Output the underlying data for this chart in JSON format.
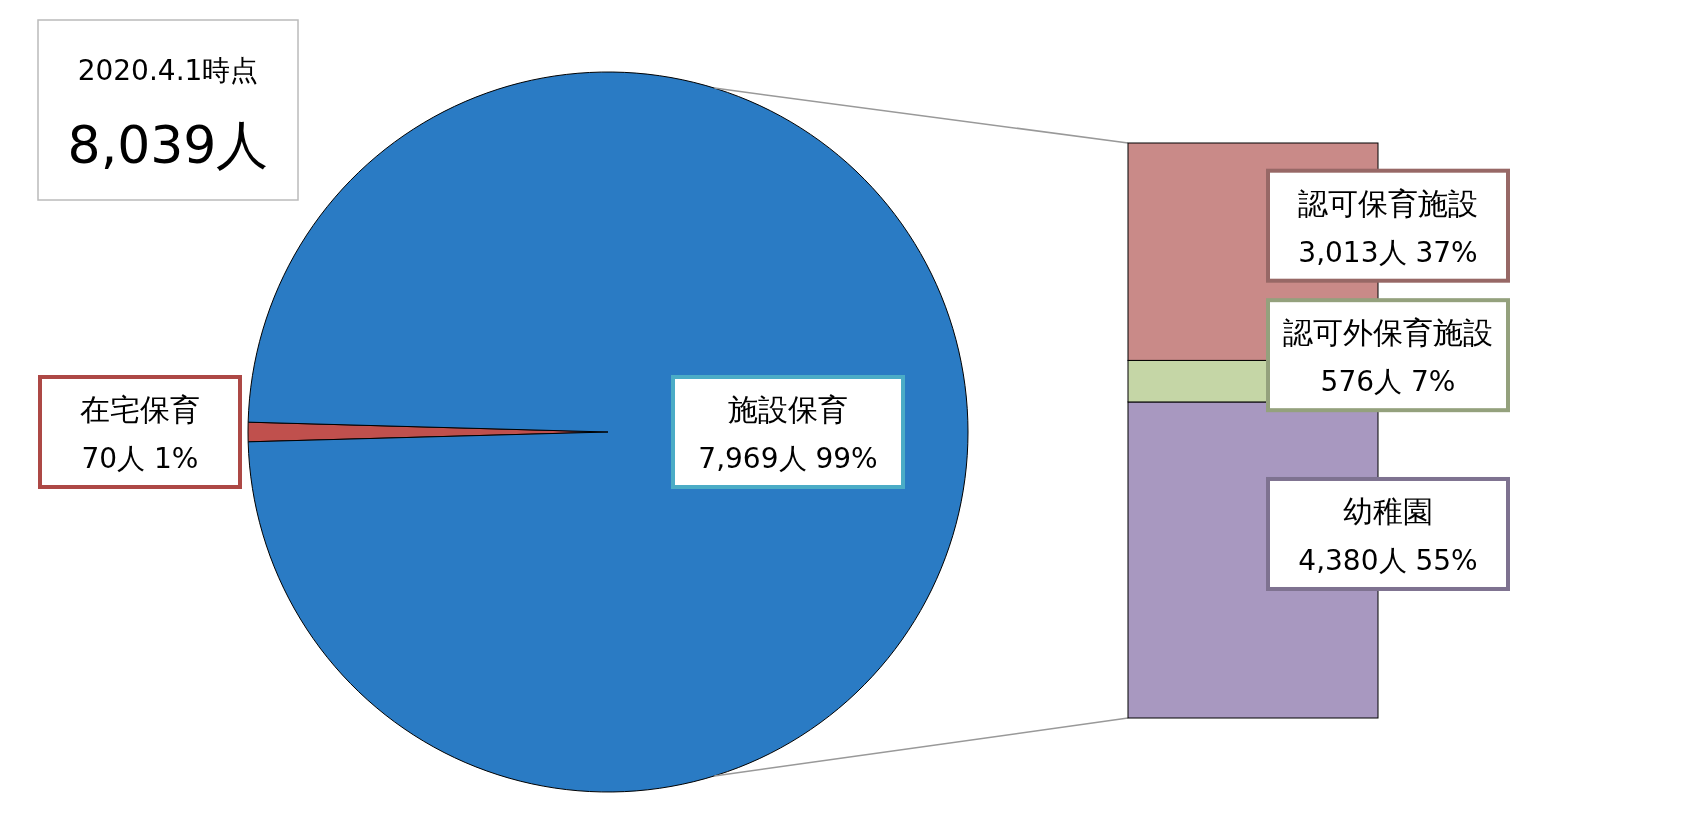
{
  "chart_data": [
    {
      "type": "pie",
      "title": "2020.4.1時点",
      "subtitle": "8,039人",
      "categories": [
        "在宅保育",
        "施設保育"
      ],
      "values": [
        70,
        7969
      ],
      "colors": [
        "#c0504d",
        "#2a7bc4"
      ],
      "value_labels": [
        "70人 1%",
        "7,969人 99%"
      ]
    },
    {
      "type": "bar",
      "stacked": true,
      "categories": [
        null
      ],
      "series": [
        {
          "name": "幼稚園",
          "color": "#a898c0",
          "values": [
            4380
          ],
          "value_labels": [
            "4,380人 55%"
          ]
        },
        {
          "name": "認可外保育施設",
          "color": "#c5d6a6",
          "values": [
            576
          ],
          "value_labels": [
            "576人 7%"
          ]
        },
        {
          "name": "認可保育施設",
          "color": "#c98a88",
          "values": [
            3013
          ],
          "value_labels": [
            "3,013人 37%"
          ]
        }
      ]
    }
  ]
}
